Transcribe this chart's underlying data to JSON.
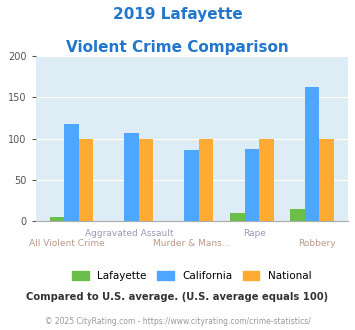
{
  "title_line1": "2019 Lafayette",
  "title_line2": "Violent Crime Comparison",
  "categories": [
    "All Violent Crime",
    "Aggravated Assault",
    "Murder & Mans...",
    "Rape",
    "Robbery"
  ],
  "lafayette": [
    5,
    0,
    0,
    10,
    15
  ],
  "california": [
    118,
    107,
    86,
    87,
    162
  ],
  "national": [
    100,
    100,
    100,
    100,
    100
  ],
  "lafayette_color": "#6abf4b",
  "california_color": "#4da6ff",
  "national_color": "#ffaa33",
  "ylim": [
    0,
    200
  ],
  "yticks": [
    0,
    50,
    100,
    150,
    200
  ],
  "plot_bg": "#deedf5",
  "subtitle_note": "Compared to U.S. average. (U.S. average equals 100)",
  "footer": "© 2025 CityRating.com - https://www.cityrating.com/crime-statistics/",
  "title_color": "#2277cc",
  "note_color": "#333333",
  "footer_color": "#999999",
  "xlabel_top_color": "#9988aa",
  "xlabel_bot_color": "#bb9988"
}
